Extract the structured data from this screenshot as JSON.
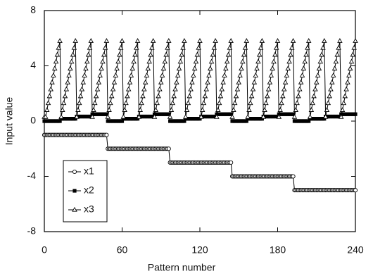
{
  "chart_data": {
    "type": "line",
    "x_label": "Pattern number",
    "y_label": "Input value",
    "xlim": [
      0,
      240
    ],
    "xticks": [
      0,
      60,
      120,
      180,
      240
    ],
    "ylim": [
      -8,
      8
    ],
    "yticks": [
      -8,
      -4,
      0,
      4,
      8
    ],
    "grid": false,
    "legend": "lower left",
    "x": [
      0,
      1,
      2,
      3,
      4,
      5,
      6,
      7,
      8,
      9,
      10,
      11,
      12,
      13,
      14,
      15,
      16,
      17,
      18,
      19,
      20,
      21,
      22,
      23,
      24,
      25,
      26,
      27,
      28,
      29,
      30,
      31,
      32,
      33,
      34,
      35,
      36,
      37,
      38,
      39,
      40,
      41,
      42,
      43,
      44,
      45,
      46,
      47,
      48,
      49,
      50,
      51,
      52,
      53,
      54,
      55,
      56,
      57,
      58,
      59,
      60,
      61,
      62,
      63,
      64,
      65,
      66,
      67,
      68,
      69,
      70,
      71,
      72,
      73,
      74,
      75,
      76,
      77,
      78,
      79,
      80,
      81,
      82,
      83,
      84,
      85,
      86,
      87,
      88,
      89,
      90,
      91,
      92,
      93,
      94,
      95,
      96,
      97,
      98,
      99,
      100,
      101,
      102,
      103,
      104,
      105,
      106,
      107,
      108,
      109,
      110,
      111,
      112,
      113,
      114,
      115,
      116,
      117,
      118,
      119,
      120,
      121,
      122,
      123,
      124,
      125,
      126,
      127,
      128,
      129,
      130,
      131,
      132,
      133,
      134,
      135,
      136,
      137,
      138,
      139,
      140,
      141,
      142,
      143,
      144,
      145,
      146,
      147,
      148,
      149,
      150,
      151,
      152,
      153,
      154,
      155,
      156,
      157,
      158,
      159,
      160,
      161,
      162,
      163,
      164,
      165,
      166,
      167,
      168,
      169,
      170,
      171,
      172,
      173,
      174,
      175,
      176,
      177,
      178,
      179,
      180,
      181,
      182,
      183,
      184,
      185,
      186,
      187,
      188,
      189,
      190,
      191,
      192,
      193,
      194,
      195,
      196,
      197,
      198,
      199,
      200,
      201,
      202,
      203,
      204,
      205,
      206,
      207,
      208,
      209,
      210,
      211,
      212,
      213,
      214,
      215,
      216,
      217,
      218,
      219,
      220,
      221,
      222,
      223,
      224,
      225,
      226,
      227,
      228,
      229,
      230,
      231,
      232,
      233,
      234,
      235,
      236,
      237,
      238,
      239,
      240
    ],
    "series": [
      {
        "name": "x1",
        "color": "#000000",
        "marker": "circle",
        "values": [
          -1,
          -1,
          -1,
          -1,
          -1,
          -1,
          -1,
          -1,
          -1,
          -1,
          -1,
          -1,
          -1,
          -1,
          -1,
          -1,
          -1,
          -1,
          -1,
          -1,
          -1,
          -1,
          -1,
          -1,
          -1,
          -1,
          -1,
          -1,
          -1,
          -1,
          -1,
          -1,
          -1,
          -1,
          -1,
          -1,
          -1,
          -1,
          -1,
          -1,
          -1,
          -1,
          -1,
          -1,
          -1,
          -1,
          -1,
          -1,
          -1,
          -2,
          -2,
          -2,
          -2,
          -2,
          -2,
          -2,
          -2,
          -2,
          -2,
          -2,
          -2,
          -2,
          -2,
          -2,
          -2,
          -2,
          -2,
          -2,
          -2,
          -2,
          -2,
          -2,
          -2,
          -2,
          -2,
          -2,
          -2,
          -2,
          -2,
          -2,
          -2,
          -2,
          -2,
          -2,
          -2,
          -2,
          -2,
          -2,
          -2,
          -2,
          -2,
          -2,
          -2,
          -2,
          -2,
          -2,
          -2,
          -3,
          -3,
          -3,
          -3,
          -3,
          -3,
          -3,
          -3,
          -3,
          -3,
          -3,
          -3,
          -3,
          -3,
          -3,
          -3,
          -3,
          -3,
          -3,
          -3,
          -3,
          -3,
          -3,
          -3,
          -3,
          -3,
          -3,
          -3,
          -3,
          -3,
          -3,
          -3,
          -3,
          -3,
          -3,
          -3,
          -3,
          -3,
          -3,
          -3,
          -3,
          -3,
          -3,
          -3,
          -3,
          -3,
          -3,
          -3,
          -4,
          -4,
          -4,
          -4,
          -4,
          -4,
          -4,
          -4,
          -4,
          -4,
          -4,
          -4,
          -4,
          -4,
          -4,
          -4,
          -4,
          -4,
          -4,
          -4,
          -4,
          -4,
          -4,
          -4,
          -4,
          -4,
          -4,
          -4,
          -4,
          -4,
          -4,
          -4,
          -4,
          -4,
          -4,
          -4,
          -4,
          -4,
          -4,
          -4,
          -4,
          -4,
          -4,
          -4,
          -4,
          -4,
          -4,
          -4,
          -5,
          -5,
          -5,
          -5,
          -5,
          -5,
          -5,
          -5,
          -5,
          -5,
          -5,
          -5,
          -5,
          -5,
          -5,
          -5,
          -5,
          -5,
          -5,
          -5,
          -5,
          -5,
          -5,
          -5,
          -5,
          -5,
          -5,
          -5,
          -5,
          -5,
          -5,
          -5,
          -5,
          -5,
          -5,
          -5,
          -5,
          -5,
          -5,
          -5,
          -5,
          -5,
          -5,
          -5,
          -5,
          -5,
          -5,
          -5
        ]
      },
      {
        "name": "x2",
        "color": "#000000",
        "marker": "square",
        "values": [
          0,
          0,
          0,
          0,
          0,
          0,
          0,
          0,
          0,
          0,
          0,
          0,
          0,
          0.17,
          0.17,
          0.17,
          0.17,
          0.17,
          0.17,
          0.17,
          0.17,
          0.17,
          0.17,
          0.17,
          0.17,
          0.33,
          0.33,
          0.33,
          0.33,
          0.33,
          0.33,
          0.33,
          0.33,
          0.33,
          0.33,
          0.33,
          0.33,
          0.5,
          0.5,
          0.5,
          0.5,
          0.5,
          0.5,
          0.5,
          0.5,
          0.5,
          0.5,
          0.5,
          0.5,
          0,
          0,
          0,
          0,
          0,
          0,
          0,
          0,
          0,
          0,
          0,
          0,
          0.17,
          0.17,
          0.17,
          0.17,
          0.17,
          0.17,
          0.17,
          0.17,
          0.17,
          0.17,
          0.17,
          0.17,
          0.33,
          0.33,
          0.33,
          0.33,
          0.33,
          0.33,
          0.33,
          0.33,
          0.33,
          0.33,
          0.33,
          0.33,
          0.5,
          0.5,
          0.5,
          0.5,
          0.5,
          0.5,
          0.5,
          0.5,
          0.5,
          0.5,
          0.5,
          0.5,
          0,
          0,
          0,
          0,
          0,
          0,
          0,
          0,
          0,
          0,
          0,
          0,
          0.17,
          0.17,
          0.17,
          0.17,
          0.17,
          0.17,
          0.17,
          0.17,
          0.17,
          0.17,
          0.17,
          0.17,
          0.33,
          0.33,
          0.33,
          0.33,
          0.33,
          0.33,
          0.33,
          0.33,
          0.33,
          0.33,
          0.33,
          0.33,
          0.5,
          0.5,
          0.5,
          0.5,
          0.5,
          0.5,
          0.5,
          0.5,
          0.5,
          0.5,
          0.5,
          0.5,
          0,
          0,
          0,
          0,
          0,
          0,
          0,
          0,
          0,
          0,
          0,
          0,
          0.17,
          0.17,
          0.17,
          0.17,
          0.17,
          0.17,
          0.17,
          0.17,
          0.17,
          0.17,
          0.17,
          0.17,
          0.33,
          0.33,
          0.33,
          0.33,
          0.33,
          0.33,
          0.33,
          0.33,
          0.33,
          0.33,
          0.33,
          0.33,
          0.5,
          0.5,
          0.5,
          0.5,
          0.5,
          0.5,
          0.5,
          0.5,
          0.5,
          0.5,
          0.5,
          0.5,
          0,
          0,
          0,
          0,
          0,
          0,
          0,
          0,
          0,
          0,
          0,
          0,
          0.17,
          0.17,
          0.17,
          0.17,
          0.17,
          0.17,
          0.17,
          0.17,
          0.17,
          0.17,
          0.17,
          0.17,
          0.33,
          0.33,
          0.33,
          0.33,
          0.33,
          0.33,
          0.33,
          0.33,
          0.33,
          0.33,
          0.33,
          0.33,
          0.5,
          0.5,
          0.5,
          0.5,
          0.5,
          0.5,
          0.5,
          0.5,
          0.5,
          0.5,
          0.5,
          0.5
        ]
      },
      {
        "name": "x3",
        "color": "#000000",
        "marker": "triangle",
        "values": [
          0.3,
          0.3,
          0.8,
          1.3,
          1.8,
          2.3,
          2.8,
          3.3,
          3.8,
          4.3,
          4.8,
          5.3,
          5.8,
          0.3,
          0.8,
          1.3,
          1.8,
          2.3,
          2.8,
          3.3,
          3.8,
          4.3,
          4.8,
          5.3,
          5.8,
          0.3,
          0.8,
          1.3,
          1.8,
          2.3,
          2.8,
          3.3,
          3.8,
          4.3,
          4.8,
          5.3,
          5.8,
          0.3,
          0.8,
          1.3,
          1.8,
          2.3,
          2.8,
          3.3,
          3.8,
          4.3,
          4.8,
          5.3,
          5.8,
          0.3,
          0.8,
          1.3,
          1.8,
          2.3,
          2.8,
          3.3,
          3.8,
          4.3,
          4.8,
          5.3,
          5.8,
          0.3,
          0.8,
          1.3,
          1.8,
          2.3,
          2.8,
          3.3,
          3.8,
          4.3,
          4.8,
          5.3,
          5.8,
          0.3,
          0.8,
          1.3,
          1.8,
          2.3,
          2.8,
          3.3,
          3.8,
          4.3,
          4.8,
          5.3,
          5.8,
          0.3,
          0.8,
          1.3,
          1.8,
          2.3,
          2.8,
          3.3,
          3.8,
          4.3,
          4.8,
          5.3,
          5.8,
          0.3,
          0.8,
          1.3,
          1.8,
          2.3,
          2.8,
          3.3,
          3.8,
          4.3,
          4.8,
          5.3,
          5.8,
          0.3,
          0.8,
          1.3,
          1.8,
          2.3,
          2.8,
          3.3,
          3.8,
          4.3,
          4.8,
          5.3,
          5.8,
          0.3,
          0.8,
          1.3,
          1.8,
          2.3,
          2.8,
          3.3,
          3.8,
          4.3,
          4.8,
          5.3,
          5.8,
          0.3,
          0.8,
          1.3,
          1.8,
          2.3,
          2.8,
          3.3,
          3.8,
          4.3,
          4.8,
          5.3,
          5.8,
          0.3,
          0.8,
          1.3,
          1.8,
          2.3,
          2.8,
          3.3,
          3.8,
          4.3,
          4.8,
          5.3,
          5.8,
          0.3,
          0.8,
          1.3,
          1.8,
          2.3,
          2.8,
          3.3,
          3.8,
          4.3,
          4.8,
          5.3,
          5.8,
          0.3,
          0.8,
          1.3,
          1.8,
          2.3,
          2.8,
          3.3,
          3.8,
          4.3,
          4.8,
          5.3,
          5.8,
          0.3,
          0.8,
          1.3,
          1.8,
          2.3,
          2.8,
          3.3,
          3.8,
          4.3,
          4.8,
          5.3,
          5.8,
          0.3,
          0.8,
          1.3,
          1.8,
          2.3,
          2.8,
          3.3,
          3.8,
          4.3,
          4.8,
          5.3,
          5.8,
          0.3,
          0.8,
          1.3,
          1.8,
          2.3,
          2.8,
          3.3,
          3.8,
          4.3,
          4.8,
          5.3,
          5.8,
          0.3,
          0.8,
          1.3,
          1.8,
          2.3,
          2.8,
          3.3,
          3.8,
          4.3,
          4.8,
          5.3,
          5.8,
          0.3,
          0.8,
          1.3,
          1.8,
          2.3,
          2.8,
          3.3,
          3.8,
          4.3,
          4.8,
          5.3,
          5.8
        ]
      }
    ]
  }
}
